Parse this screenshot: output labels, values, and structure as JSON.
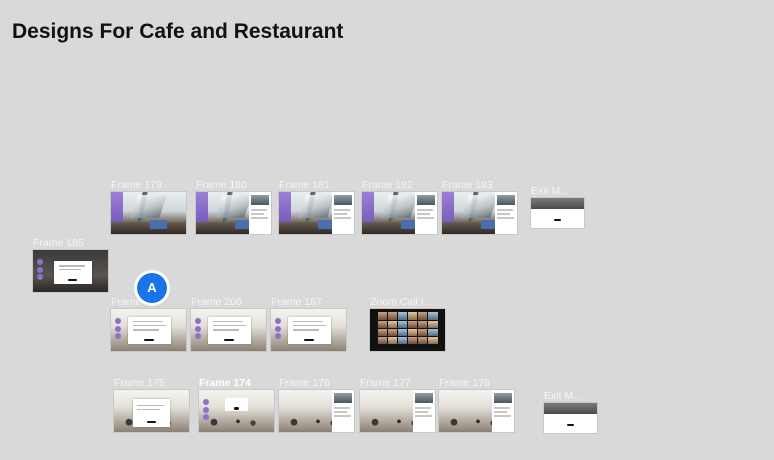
{
  "page": {
    "title": "Designs For Cafe and Restaurant"
  },
  "colors": {
    "canvas": "#d9d9d9",
    "accent_purple": "#8d6fd1",
    "avatar_blue": "#1a73e8"
  },
  "collaborator": {
    "initial": "A"
  },
  "frames": {
    "f179": "Frame 179",
    "f180": "Frame 180",
    "f181": "Frame 181",
    "f182": "Frame 182",
    "f183": "Frame 183",
    "exit1": "Exit M...",
    "f185": "Frame 185",
    "f_partial": "Frame",
    "f206": "Frame 206",
    "f187": "Frame 187",
    "zoom": "Zoom Call I...",
    "f175": "Frame 175",
    "f174": "Frame 174",
    "f176": "Frame 176",
    "f177": "Frame 177",
    "f178": "Frame 178",
    "exit2": "Exit M..."
  }
}
